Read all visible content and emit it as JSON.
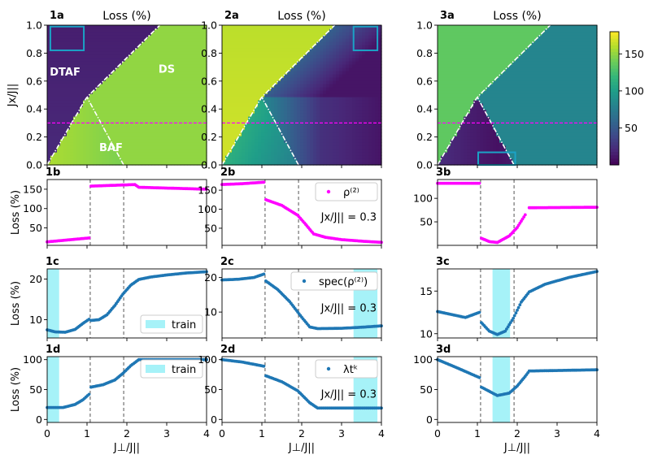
{
  "chart_data": {
    "type": "heatmap+line",
    "colorbar": {
      "ticks": [
        "50",
        "100",
        "150"
      ],
      "range": [
        0,
        180
      ],
      "colormap": "viridis"
    },
    "x_tick_labels": [
      "0",
      "1",
      "2",
      "3",
      "4"
    ],
    "x_range": [
      0,
      4
    ],
    "xlabel": "J⊥/J||",
    "heat_ylabel": "Jx/J||",
    "loss_ylabel": "Loss (%)",
    "heat_y_tick_labels": [
      "0.0",
      "0.2",
      "0.4",
      "0.6",
      "0.8",
      "1.0"
    ],
    "heat_y_range": [
      0,
      1
    ],
    "cut_value": 0.3,
    "columns": [
      {
        "heatmap": {
          "label": "1a",
          "title": "Loss (%)",
          "regions": [
            {
              "text": "DTAF",
              "x": 0.45,
              "y": 0.64
            },
            {
              "text": "DS",
              "x": 3.0,
              "y": 0.66
            },
            {
              "text": "BAF",
              "x": 1.6,
              "y": 0.1
            }
          ],
          "train_box": {
            "x0": 0.08,
            "x1": 0.92,
            "y0": 0.82,
            "y1": 0.99
          }
        },
        "rows": [
          {
            "label": "1b",
            "ylim": [
              5,
              175
            ],
            "ticks": [
              50,
              100,
              150
            ],
            "color": "#ff00ff",
            "segments": [
              [
                [
                  0,
                  14
                ],
                [
                  1.05,
                  24
                ]
              ],
              [
                [
                  1.1,
                  158
                ],
                [
                  2.2,
                  162
                ],
                [
                  2.3,
                  155
                ],
                [
                  4,
                  150
                ]
              ]
            ]
          },
          {
            "label": "1c",
            "ylim": [
              5.5,
              22.5
            ],
            "ticks": [
              10,
              20
            ],
            "color": "#1f77b4",
            "train": [
              0,
              0.3
            ],
            "legend": {
              "kind": "train",
              "label": "train",
              "pos": "bottom-right"
            },
            "segments": [
              [
                [
                  0,
                  7.5
                ],
                [
                  0.2,
                  7.0
                ],
                [
                  0.45,
                  6.9
                ],
                [
                  0.7,
                  7.6
                ],
                [
                  0.9,
                  9.1
                ],
                [
                  1.05,
                  10.1
                ]
              ],
              [
                [
                  1.1,
                  9.8
                ],
                [
                  1.3,
                  10.0
                ],
                [
                  1.5,
                  11.2
                ],
                [
                  1.7,
                  13.5
                ],
                [
                  1.9,
                  16.3
                ],
                [
                  2.1,
                  18.5
                ],
                [
                  2.3,
                  19.9
                ],
                [
                  2.6,
                  20.5
                ],
                [
                  3.0,
                  21.0
                ],
                [
                  3.5,
                  21.5
                ],
                [
                  4,
                  21.8
                ]
              ]
            ]
          },
          {
            "label": "1d",
            "ylim": [
              -5,
              105
            ],
            "ticks": [
              0,
              50,
              100
            ],
            "color": "#1f77b4",
            "train": [
              0,
              0.3
            ],
            "legend": {
              "kind": "train",
              "label": "train",
              "pos": "top-right"
            },
            "segments": [
              [
                [
                  0,
                  20
                ],
                [
                  0.4,
                  20
                ],
                [
                  0.7,
                  25
                ],
                [
                  0.9,
                  33
                ],
                [
                  1.05,
                  42
                ]
              ],
              [
                [
                  1.1,
                  54
                ],
                [
                  1.4,
                  58
                ],
                [
                  1.7,
                  66
                ],
                [
                  1.9,
                  77
                ],
                [
                  2.1,
                  90
                ],
                [
                  2.3,
                  100
                ],
                [
                  4,
                  100
                ]
              ]
            ]
          }
        ]
      },
      {
        "heatmap": {
          "label": "2a",
          "title": "Loss (%)",
          "regions": [],
          "train_box": {
            "x0": 3.3,
            "x1": 3.9,
            "y0": 0.82,
            "y1": 0.99
          }
        },
        "rows": [
          {
            "label": "2b",
            "ylim": [
              5,
              178
            ],
            "ticks": [
              50,
              100,
              150
            ],
            "color": "#ff00ff",
            "legend": {
              "kind": "marker",
              "label": "ρ⁽²⁾",
              "pos": "top-right"
            },
            "note": "Jx/J|| = 0.3",
            "segments": [
              [
                [
                  0,
                  165
                ],
                [
                  0.5,
                  167
                ],
                [
                  1.05,
                  171
                ]
              ],
              [
                [
                  1.1,
                  125
                ],
                [
                  1.5,
                  110
                ],
                [
                  1.9,
                  84
                ],
                [
                  2.1,
                  60
                ],
                [
                  2.3,
                  35
                ],
                [
                  2.6,
                  26
                ],
                [
                  3.0,
                  20
                ],
                [
                  3.5,
                  16
                ],
                [
                  4,
                  13
                ]
              ]
            ]
          },
          {
            "label": "2c",
            "ylim": [
              2.5,
              22.5
            ],
            "ticks": [
              10,
              20
            ],
            "color": "#1f77b4",
            "train": [
              3.3,
              3.9
            ],
            "legend": {
              "kind": "marker",
              "label": "spec(ρ⁽²⁾)",
              "pos": "top-right"
            },
            "note": "Jx/J|| = 0.3",
            "segments": [
              [
                [
                  0,
                  19.3
                ],
                [
                  0.4,
                  19.5
                ],
                [
                  0.8,
                  20.0
                ],
                [
                  1.05,
                  21.0
                ]
              ],
              [
                [
                  1.1,
                  19.0
                ],
                [
                  1.4,
                  16.5
                ],
                [
                  1.7,
                  13.0
                ],
                [
                  2.0,
                  8.5
                ],
                [
                  2.2,
                  5.7
                ],
                [
                  2.4,
                  5.2
                ],
                [
                  3.0,
                  5.3
                ],
                [
                  3.5,
                  5.6
                ],
                [
                  4,
                  6.0
                ]
              ]
            ]
          },
          {
            "label": "2d",
            "ylim": [
              -5,
              105
            ],
            "ticks": [
              0,
              50,
              100
            ],
            "color": "#1f77b4",
            "train": [
              3.3,
              3.9
            ],
            "legend": {
              "kind": "marker",
              "label": "λtᵏ",
              "pos": "top-right"
            },
            "note": "Jx/J|| = 0.3",
            "segments": [
              [
                [
                  0,
                  100
                ],
                [
                  0.5,
                  96
                ],
                [
                  1.05,
                  89
                ]
              ],
              [
                [
                  1.1,
                  73
                ],
                [
                  1.5,
                  63
                ],
                [
                  1.9,
                  48
                ],
                [
                  2.2,
                  28
                ],
                [
                  2.4,
                  19
                ],
                [
                  4,
                  19
                ]
              ]
            ]
          }
        ]
      },
      {
        "heatmap": {
          "label": "3a",
          "title": "Loss (%)",
          "regions": [],
          "train_box": {
            "x0": 1.02,
            "x1": 1.95,
            "y0": 0.0,
            "y1": 0.09
          }
        },
        "rows": [
          {
            "label": "3b",
            "ylim": [
              0,
              140
            ],
            "ticks": [
              50,
              100
            ],
            "color": "#ff00ff",
            "segments": [
              [
                [
                  0,
                  132
                ],
                [
                  1.05,
                  132
                ]
              ],
              [
                [
                  1.1,
                  15
                ],
                [
                  1.3,
                  8
                ],
                [
                  1.5,
                  6
                ],
                [
                  1.8,
                  20
                ],
                [
                  2.0,
                  38
                ],
                [
                  2.2,
                  65
                ]
              ],
              [
                [
                  2.3,
                  80
                ],
                [
                  4,
                  81
                ]
              ]
            ]
          },
          {
            "label": "3c",
            "ylim": [
              9.5,
              17.6
            ],
            "ticks": [
              10,
              15
            ],
            "color": "#1f77b4",
            "train": [
              1.38,
              1.82
            ],
            "segments": [
              [
                [
                  0,
                  12.6
                ],
                [
                  0.3,
                  12.3
                ],
                [
                  0.7,
                  11.9
                ],
                [
                  1.05,
                  12.5
                ]
              ],
              [
                [
                  1.1,
                  11.3
                ],
                [
                  1.3,
                  10.3
                ],
                [
                  1.5,
                  9.9
                ],
                [
                  1.7,
                  10.3
                ],
                [
                  1.9,
                  11.8
                ],
                [
                  2.1,
                  13.7
                ],
                [
                  2.3,
                  14.9
                ],
                [
                  2.7,
                  15.8
                ],
                [
                  3.3,
                  16.6
                ],
                [
                  4,
                  17.3
                ]
              ]
            ]
          },
          {
            "label": "3d",
            "ylim": [
              -5,
              105
            ],
            "ticks": [
              0,
              50,
              100
            ],
            "color": "#1f77b4",
            "train": [
              1.38,
              1.82
            ],
            "segments": [
              [
                [
                  0,
                  100
                ],
                [
                  0.5,
                  86
                ],
                [
                  1.05,
                  70
                ]
              ],
              [
                [
                  1.1,
                  54
                ],
                [
                  1.5,
                  40
                ],
                [
                  1.8,
                  44
                ],
                [
                  2.0,
                  56
                ],
                [
                  2.2,
                  72
                ],
                [
                  2.3,
                  81
                ],
                [
                  4,
                  83
                ]
              ]
            ]
          }
        ]
      }
    ]
  }
}
